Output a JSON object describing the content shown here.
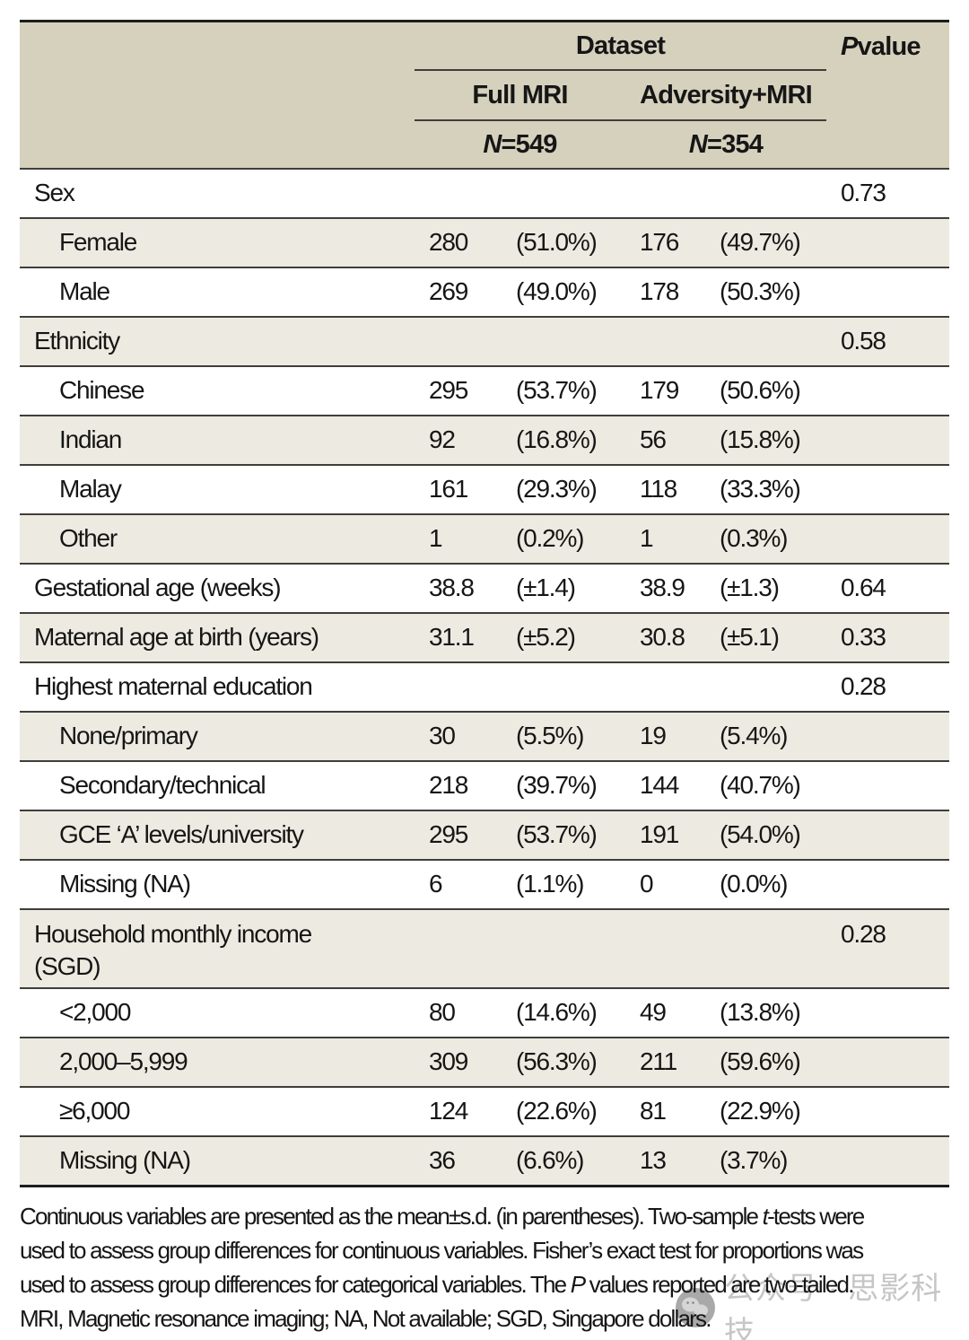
{
  "header": {
    "dataset_label": "Dataset",
    "p_value_header": [
      {
        "t": "P",
        "i": true
      },
      {
        "t": " value"
      }
    ],
    "group_columns": [
      "Full MRI",
      "Adversity+MRI"
    ],
    "group_n": {
      "full_mri": [
        {
          "t": "N",
          "i": true
        },
        {
          "t": "=549"
        }
      ],
      "adversity_mri": [
        {
          "t": "N",
          "i": true
        },
        {
          "t": "=354"
        }
      ]
    }
  },
  "table": {
    "rows": [
      {
        "label": "Sex",
        "indent": false,
        "values": [
          "",
          "",
          "",
          "",
          "0.73"
        ]
      },
      {
        "label": "Female",
        "indent": true,
        "values": [
          "280",
          "(51.0%)",
          "176",
          "(49.7%)",
          ""
        ]
      },
      {
        "label": "Male",
        "indent": true,
        "values": [
          "269",
          "(49.0%)",
          "178",
          "(50.3%)",
          ""
        ]
      },
      {
        "label": "Ethnicity",
        "indent": false,
        "values": [
          "",
          "",
          "",
          "",
          "0.58"
        ]
      },
      {
        "label": "Chinese",
        "indent": true,
        "values": [
          "295",
          "(53.7%)",
          "179",
          "(50.6%)",
          ""
        ]
      },
      {
        "label": "Indian",
        "indent": true,
        "values": [
          "92",
          "(16.8%)",
          "56",
          "(15.8%)",
          ""
        ]
      },
      {
        "label": "Malay",
        "indent": true,
        "values": [
          "161",
          "(29.3%)",
          "118",
          "(33.3%)",
          ""
        ]
      },
      {
        "label": "Other",
        "indent": true,
        "values": [
          "1",
          "(0.2%)",
          "1",
          "(0.3%)",
          ""
        ]
      },
      {
        "label": "Gestational age (weeks)",
        "indent": false,
        "values": [
          "38.8",
          "(±1.4)",
          "38.9",
          "(±1.3)",
          "0.64"
        ]
      },
      {
        "label": "Maternal age at birth (years)",
        "indent": false,
        "values": [
          "31.1",
          "(±5.2)",
          "30.8",
          "(±5.1)",
          "0.33"
        ]
      },
      {
        "label": "Highest maternal education",
        "indent": false,
        "values": [
          "",
          "",
          "",
          "",
          "0.28"
        ]
      },
      {
        "label": "None/primary",
        "indent": true,
        "values": [
          "30",
          "(5.5%)",
          "19",
          "(5.4%)",
          ""
        ]
      },
      {
        "label": "Secondary/technical",
        "indent": true,
        "values": [
          "218",
          "(39.7%)",
          "144",
          "(40.7%)",
          ""
        ]
      },
      {
        "label": "GCE ‘A’ levels/university",
        "indent": true,
        "values": [
          "295",
          "(53.7%)",
          "191",
          "(54.0%)",
          ""
        ]
      },
      {
        "label": "Missing (NA)",
        "indent": true,
        "values": [
          "6",
          "(1.1%)",
          "0",
          "(0.0%)",
          ""
        ]
      },
      {
        "label": "Household monthly income\n(SGD)",
        "indent": false,
        "values": [
          "",
          "",
          "",
          "",
          "0.28"
        ]
      },
      {
        "label": "<2,000",
        "indent": true,
        "values": [
          "80",
          "(14.6%)",
          "49",
          "(13.8%)",
          ""
        ]
      },
      {
        "label": "2,000–5,999",
        "indent": true,
        "values": [
          "309",
          "(56.3%)",
          "211",
          "(59.6%)",
          ""
        ]
      },
      {
        "label": "≥6,000",
        "indent": true,
        "values": [
          "124",
          "(22.6%)",
          "81",
          "(22.9%)",
          ""
        ]
      },
      {
        "label": "Missing (NA)",
        "indent": true,
        "values": [
          "36",
          "(6.6%)",
          "13",
          "(3.7%)",
          ""
        ]
      }
    ]
  },
  "footnote": {
    "lines": [
      [
        {
          "t": "Continuous variables are presented as the mean±s.d. (in parentheses). Two-sample "
        },
        {
          "t": "t",
          "i": true
        },
        {
          "t": "-tests were"
        }
      ],
      [
        {
          "t": "used to assess group differences for continuous variables. Fisher’s exact test for proportions was"
        }
      ],
      [
        {
          "t": "used to assess group differences for categorical variables. The "
        },
        {
          "t": "P",
          "i": true
        },
        {
          "t": " values reported are two-tailed."
        }
      ],
      [
        {
          "t": "MRI, Magnetic resonance imaging; NA, Not available; SGD, Singapore dollars."
        }
      ]
    ]
  },
  "watermark": {
    "icon": "wechat-icon",
    "text": "公众号 · 思影科技"
  },
  "colors": {
    "header_bg": "#d5d1bd",
    "row_shade_bg": "#edebe1",
    "rule_thin": "#3f3e39",
    "rule_thick": "#1e1e1e",
    "text": "#161616",
    "watermark": "#c6c6c6"
  }
}
